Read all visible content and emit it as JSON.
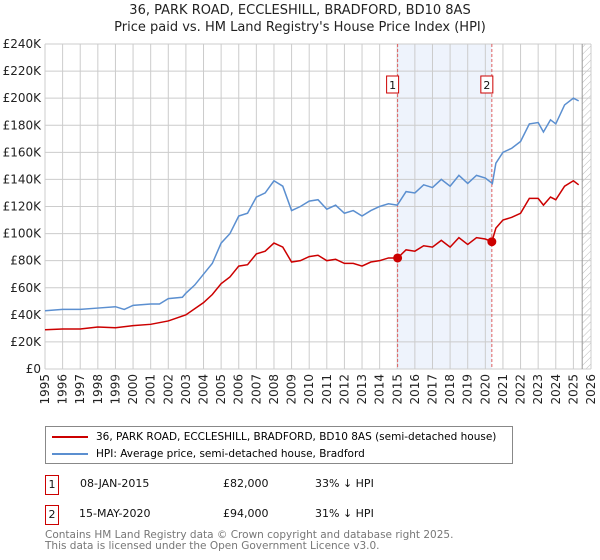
{
  "chart_data": {
    "type": "line",
    "title": "36, PARK ROAD, ECCLESHILL, BRADFORD, BD10 8AS",
    "subtitle": "Price paid vs. HM Land Registry's House Price Index (HPI)",
    "xlim": [
      1995,
      2026
    ],
    "ylim": [
      0,
      240000
    ],
    "yticks": [
      "£0",
      "£20K",
      "£40K",
      "£60K",
      "£80K",
      "£100K",
      "£120K",
      "£140K",
      "£160K",
      "£180K",
      "£200K",
      "£220K",
      "£240K"
    ],
    "xticks": [
      "1995",
      "1996",
      "1997",
      "1998",
      "1999",
      "2000",
      "2001",
      "2002",
      "2003",
      "2004",
      "2005",
      "2006",
      "2007",
      "2008",
      "2009",
      "2010",
      "2011",
      "2012",
      "2013",
      "2014",
      "2015",
      "2016",
      "2017",
      "2018",
      "2019",
      "2020",
      "2021",
      "2022",
      "2023",
      "2024",
      "2025",
      "2026"
    ],
    "grid": true,
    "series": [
      {
        "name": "36, PARK ROAD, ECCLESHILL, BRADFORD, BD10 8AS (semi-detached house)",
        "color": "#cc0000",
        "x": [
          1995,
          1996,
          1997,
          1998,
          1999,
          2000,
          2001,
          2002,
          2003,
          2004,
          2004.5,
          2005,
          2005.5,
          2006,
          2006.5,
          2007,
          2007.5,
          2008,
          2008.5,
          2009,
          2009.5,
          2010,
          2010.5,
          2011,
          2011.5,
          2012,
          2012.5,
          2013,
          2013.5,
          2014,
          2014.5,
          2015.02,
          2015.5,
          2016,
          2016.5,
          2017,
          2017.5,
          2018,
          2018.5,
          2019,
          2019.5,
          2020,
          2020.37,
          2020.6,
          2021,
          2021.5,
          2022,
          2022.5,
          2023,
          2023.3,
          2023.7,
          2024,
          2024.5,
          2025,
          2025.3
        ],
        "y": [
          29000,
          29500,
          29500,
          31000,
          30500,
          32000,
          33000,
          35500,
          40000,
          49000,
          55000,
          63000,
          68000,
          76000,
          77000,
          85000,
          87000,
          93000,
          90000,
          79000,
          80000,
          83000,
          84000,
          80000,
          81000,
          78000,
          78000,
          76000,
          79000,
          80000,
          82000,
          82000,
          88000,
          87000,
          91000,
          90000,
          95000,
          90000,
          97000,
          92000,
          97000,
          96000,
          94000,
          104000,
          110000,
          112000,
          115000,
          126000,
          126000,
          121000,
          127000,
          125000,
          135000,
          139000,
          136000
        ]
      },
      {
        "name": "HPI: Average price, semi-detached house, Bradford",
        "color": "#5b8fd0",
        "x": [
          1995,
          1996,
          1997,
          1998,
          1999,
          1999.5,
          2000,
          2001,
          2001.5,
          2002,
          2002.8,
          2003,
          2003.5,
          2004,
          2004.5,
          2005,
          2005.5,
          2006,
          2006.5,
          2007,
          2007.5,
          2008,
          2008.5,
          2009,
          2009.5,
          2010,
          2010.5,
          2011,
          2011.5,
          2012,
          2012.5,
          2013,
          2013.5,
          2014,
          2014.5,
          2015,
          2015.5,
          2016,
          2016.5,
          2017,
          2017.5,
          2018,
          2018.5,
          2019,
          2019.5,
          2020,
          2020.4,
          2020.6,
          2021,
          2021.5,
          2022,
          2022.5,
          2023,
          2023.3,
          2023.7,
          2024,
          2024.5,
          2025,
          2025.3
        ],
        "y": [
          43000,
          44000,
          44000,
          45000,
          46000,
          44000,
          47000,
          48000,
          48000,
          52000,
          53000,
          56000,
          62000,
          70000,
          78000,
          93000,
          100000,
          113000,
          115000,
          127000,
          130000,
          139000,
          135000,
          117000,
          120000,
          124000,
          125000,
          118000,
          121000,
          115000,
          117000,
          113000,
          117000,
          120000,
          122000,
          121000,
          131000,
          130000,
          136000,
          134000,
          140000,
          135000,
          143000,
          137000,
          143000,
          141000,
          137000,
          152000,
          160000,
          163000,
          168000,
          181000,
          182000,
          175000,
          184000,
          181000,
          195000,
          200000,
          198000
        ]
      }
    ],
    "transactions": [
      {
        "label": "1",
        "date": "08-JAN-2015",
        "x": 2015.02,
        "price": "£82,000",
        "value": 82000,
        "hpi": "33% ↓ HPI"
      },
      {
        "label": "2",
        "date": "15-MAY-2020",
        "x": 2020.37,
        "price": "£94,000",
        "value": 94000,
        "hpi": "31% ↓ HPI"
      }
    ],
    "shaded_range": [
      2015.02,
      2020.37
    ],
    "future_hatch_from": 2025.5,
    "legend_placement": "below"
  },
  "footer": [
    "Contains HM Land Registry data © Crown copyright and database right 2025.",
    "This data is licensed under the Open Government Licence v3.0."
  ]
}
